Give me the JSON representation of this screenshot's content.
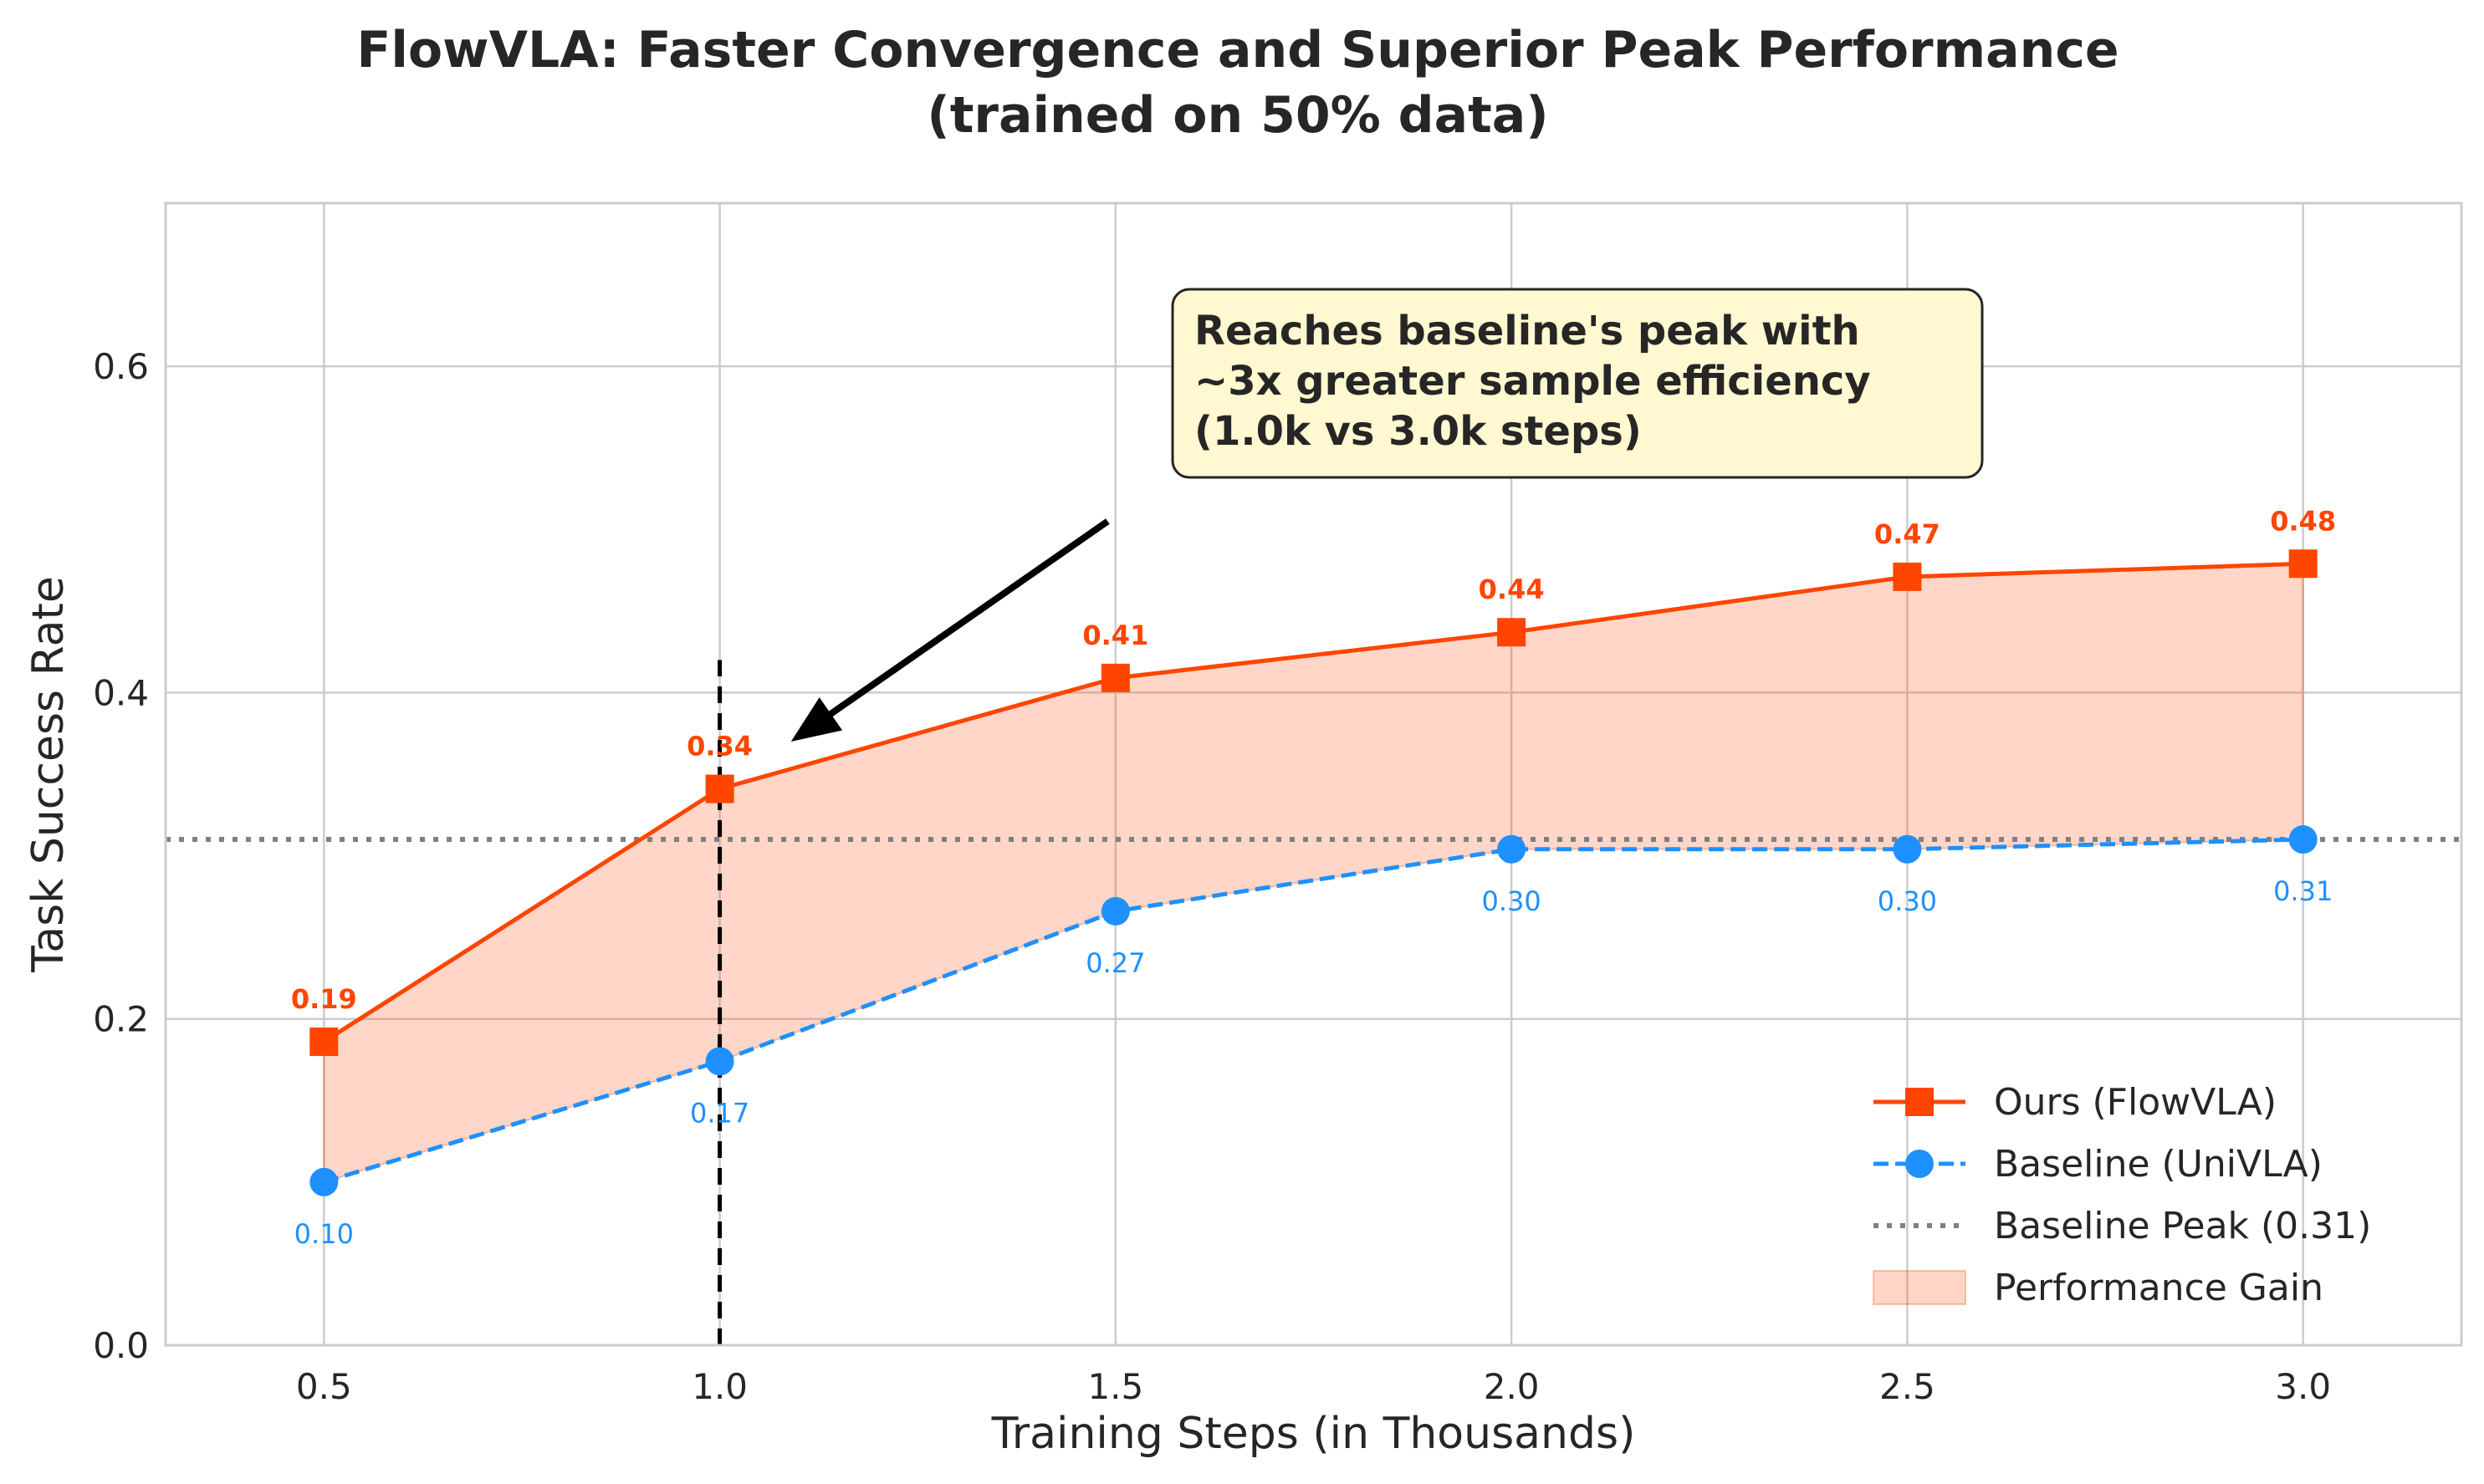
{
  "chart_data": {
    "type": "line",
    "title_lines": [
      "FlowVLA: Faster Convergence and Superior Peak Performance",
      "(trained on 50% data)"
    ],
    "xlabel": "Training Steps (in Thousands)",
    "ylabel": "Task Success Rate",
    "xlim": [
      0.3,
      3.2
    ],
    "ylim": [
      0.0,
      0.7
    ],
    "x_ticks": [
      0.5,
      1.0,
      1.5,
      2.0,
      2.5,
      3.0
    ],
    "x_tick_labels": [
      "0.5",
      "1.0",
      "1.5",
      "2.0",
      "2.5",
      "3.0"
    ],
    "y_ticks": [
      0.0,
      0.2,
      0.4,
      0.6
    ],
    "y_tick_labels": [
      "0.0",
      "0.2",
      "0.4",
      "0.6"
    ],
    "grid": true,
    "x": [
      0.5,
      1.0,
      1.5,
      2.0,
      2.5,
      3.0
    ],
    "series": [
      {
        "name": "Ours (FlowVLA)",
        "values": [
          0.186,
          0.341,
          0.409,
          0.437,
          0.471,
          0.479
        ],
        "labels": [
          "0.19",
          "0.34",
          "0.41",
          "0.44",
          "0.47",
          "0.48"
        ],
        "color": "#ff4500",
        "marker": "square",
        "line": "solid"
      },
      {
        "name": "Baseline (UniVLA)",
        "values": [
          0.1,
          0.174,
          0.266,
          0.304,
          0.304,
          0.31
        ],
        "labels": [
          "0.10",
          "0.17",
          "0.27",
          "0.30",
          "0.30",
          "0.31"
        ],
        "color": "#1e90ff",
        "marker": "circle",
        "line": "dashed"
      }
    ],
    "reference_lines": [
      {
        "name": "Baseline Peak (0.31)",
        "orientation": "horizontal",
        "value": 0.31,
        "color": "#808080",
        "style": "dotted"
      },
      {
        "orientation": "vertical",
        "value": 1.0,
        "y_range": [
          0.0,
          0.42
        ],
        "color": "#000000",
        "style": "dashed"
      }
    ],
    "fill_between": {
      "name": "Performance Gain",
      "upper": "Ours (FlowVLA)",
      "lower": "Baseline (UniVLA)",
      "color": "#ff4500",
      "alpha": 0.22
    },
    "annotation": {
      "lines": [
        "Reaches baseline's peak with",
        "~3x greater sample efficiency",
        "(1.0k vs 3.0k steps)"
      ],
      "box_fill": "#fff8d0",
      "arrow_tip": [
        1.09,
        0.37
      ],
      "arrow_tail": [
        1.49,
        0.505
      ]
    },
    "legend": {
      "placement": "lower-right",
      "entries": [
        "Ours (FlowVLA)",
        "Baseline (UniVLA)",
        "Baseline Peak (0.31)",
        "Performance Gain"
      ]
    }
  }
}
